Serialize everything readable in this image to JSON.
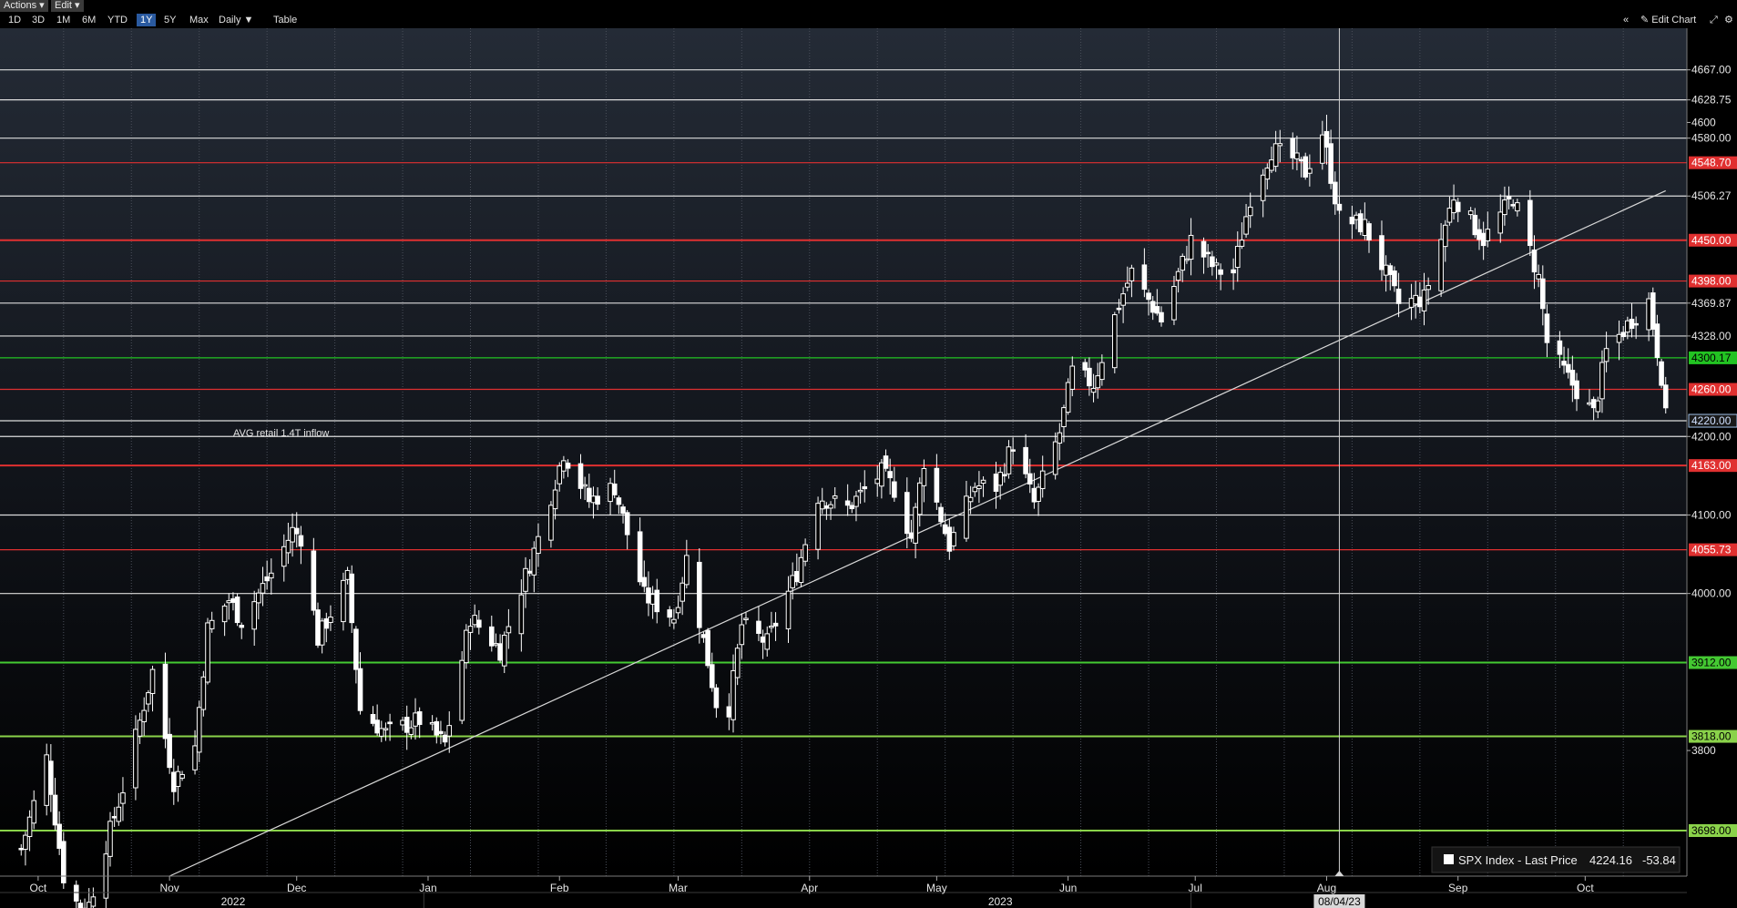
{
  "menu": {
    "actions": "Actions",
    "edit": "Edit"
  },
  "toolbar": {
    "ranges": [
      "1D",
      "3D",
      "1M",
      "6M",
      "YTD",
      "1Y",
      "5Y",
      "Max"
    ],
    "active_range": "1Y",
    "frequency": "Daily",
    "table": "Table",
    "collapse": "«",
    "edit_chart": "Edit Chart"
  },
  "chart_data": {
    "type": "candlestick",
    "ylim": [
      3640,
      4720
    ],
    "grid": true,
    "annotation": "AVG retail 1.4T inflow",
    "crosshair_label": "08/04/23",
    "legend": {
      "label": "SPX Index - Last Price",
      "last": "4224.16",
      "change": "-53.84",
      "position": "bottom-right"
    },
    "axis_labels": [
      {
        "v": 4667,
        "t": "4667.00"
      },
      {
        "v": 4628.75,
        "t": "4628.75"
      },
      {
        "v": 4600,
        "t": "4600"
      },
      {
        "v": 4580,
        "t": "4580.00"
      },
      {
        "v": 4506.27,
        "t": "4506.27"
      },
      {
        "v": 4369.87,
        "t": "4369.87"
      },
      {
        "v": 4328,
        "t": "4328.00"
      },
      {
        "v": 4200,
        "t": "4200.00"
      },
      {
        "v": 4100,
        "t": "4100.00"
      },
      {
        "v": 4000,
        "t": "4000.00"
      },
      {
        "v": 3800,
        "t": "3800"
      }
    ],
    "levels": [
      {
        "v": 4667,
        "t": "4667.00",
        "c": "#dcdcdc"
      },
      {
        "v": 4628.75,
        "t": "4628.75",
        "c": "#dcdcdc"
      },
      {
        "v": 4580,
        "t": "4580.00",
        "c": "#dcdcdc"
      },
      {
        "v": 4548.7,
        "t": "4548.70",
        "c": "#e03030"
      },
      {
        "v": 4506.27,
        "t": "4506.27",
        "c": "#dcdcdc"
      },
      {
        "v": 4450,
        "t": "4450.00",
        "c": "#e03030"
      },
      {
        "v": 4398,
        "t": "4398.00",
        "c": "#e03030"
      },
      {
        "v": 4369.87,
        "t": "4369.87",
        "c": "#dcdcdc"
      },
      {
        "v": 4328,
        "t": "4328.00",
        "c": "#dcdcdc"
      },
      {
        "v": 4300.17,
        "t": "4300.17",
        "c": "#22c322"
      },
      {
        "v": 4260,
        "t": "4260.00",
        "c": "#e03030"
      },
      {
        "v": 4220,
        "t": "4220.00",
        "c": "#9fbfe8"
      },
      {
        "v": 4200,
        "t": "4200.00",
        "c": "#dcdcdc"
      },
      {
        "v": 4163,
        "t": "4163.00",
        "c": "#e03030"
      },
      {
        "v": 4100,
        "t": "4100.00",
        "c": "#dcdcdc"
      },
      {
        "v": 4055.73,
        "t": "4055.73",
        "c": "#e03030"
      },
      {
        "v": 4000,
        "t": "4000.00",
        "c": "#dcdcdc"
      },
      {
        "v": 3912,
        "t": "3912.00",
        "c": "#44c932"
      },
      {
        "v": 3818,
        "t": "3818.00",
        "c": "#8ad24a"
      },
      {
        "v": 3698,
        "t": "3698.00",
        "c": "#8ad24a"
      }
    ],
    "months": [
      {
        "label": "Oct",
        "date": "2022-10-01"
      },
      {
        "label": "Nov",
        "date": "2022-11-01"
      },
      {
        "label": "Dec",
        "date": "2022-12-01"
      },
      {
        "label": "Jan",
        "date": "2023-01-01"
      },
      {
        "label": "Feb",
        "date": "2023-02-01"
      },
      {
        "label": "Mar",
        "date": "2023-03-01"
      },
      {
        "label": "Apr",
        "date": "2023-04-01"
      },
      {
        "label": "May",
        "date": "2023-05-01"
      },
      {
        "label": "Jun",
        "date": "2023-06-01"
      },
      {
        "label": "Jul",
        "date": "2023-07-01"
      },
      {
        "label": "Aug",
        "date": "2023-08-01"
      },
      {
        "label": "Sep",
        "date": "2023-09-01"
      },
      {
        "label": "Oct",
        "date": "2023-10-01"
      }
    ],
    "years": [
      {
        "label": "2022",
        "date": "2022-11-16"
      },
      {
        "label": "2023",
        "date": "2023-05-16"
      }
    ],
    "crosshair_date": "2023-08-04",
    "trendline": [
      {
        "date": "2022-11-01",
        "value": 3640
      },
      {
        "date": "2023-10-20",
        "value": 4513
      }
    ],
    "anchors": [
      {
        "d": "2022-09-26",
        "v": 3655
      },
      {
        "d": "2022-10-03",
        "v": 3790
      },
      {
        "d": "2022-10-07",
        "v": 3640
      },
      {
        "d": "2022-10-12",
        "v": 3585
      },
      {
        "d": "2022-10-17",
        "v": 3680
      },
      {
        "d": "2022-10-21",
        "v": 3752
      },
      {
        "d": "2022-10-28",
        "v": 3901
      },
      {
        "d": "2022-11-02",
        "v": 3760
      },
      {
        "d": "2022-11-07",
        "v": 3805
      },
      {
        "d": "2022-11-10",
        "v": 3955
      },
      {
        "d": "2022-11-15",
        "v": 3992
      },
      {
        "d": "2022-11-18",
        "v": 3965
      },
      {
        "d": "2022-11-25",
        "v": 4026
      },
      {
        "d": "2022-11-30",
        "v": 4080
      },
      {
        "d": "2022-12-02",
        "v": 4072
      },
      {
        "d": "2022-12-06",
        "v": 3942
      },
      {
        "d": "2022-12-13",
        "v": 4019
      },
      {
        "d": "2022-12-16",
        "v": 3852
      },
      {
        "d": "2022-12-22",
        "v": 3822
      },
      {
        "d": "2022-12-30",
        "v": 3839
      },
      {
        "d": "2023-01-05",
        "v": 3808
      },
      {
        "d": "2023-01-11",
        "v": 3970
      },
      {
        "d": "2023-01-18",
        "v": 3928
      },
      {
        "d": "2023-01-27",
        "v": 4070
      },
      {
        "d": "2023-02-02",
        "v": 4180
      },
      {
        "d": "2023-02-08",
        "v": 4118
      },
      {
        "d": "2023-02-14",
        "v": 4136
      },
      {
        "d": "2023-02-21",
        "v": 3997
      },
      {
        "d": "2023-02-28",
        "v": 3970
      },
      {
        "d": "2023-03-03",
        "v": 4045
      },
      {
        "d": "2023-03-10",
        "v": 3861
      },
      {
        "d": "2023-03-13",
        "v": 3855
      },
      {
        "d": "2023-03-16",
        "v": 3960
      },
      {
        "d": "2023-03-22",
        "v": 3937
      },
      {
        "d": "2023-03-29",
        "v": 4027
      },
      {
        "d": "2023-04-03",
        "v": 4124
      },
      {
        "d": "2023-04-10",
        "v": 4109
      },
      {
        "d": "2023-04-18",
        "v": 4154
      },
      {
        "d": "2023-04-21",
        "v": 4133
      },
      {
        "d": "2023-04-25",
        "v": 4071
      },
      {
        "d": "2023-04-28",
        "v": 4169
      },
      {
        "d": "2023-05-04",
        "v": 4061
      },
      {
        "d": "2023-05-10",
        "v": 4137
      },
      {
        "d": "2023-05-15",
        "v": 4136
      },
      {
        "d": "2023-05-19",
        "v": 4191
      },
      {
        "d": "2023-05-24",
        "v": 4115
      },
      {
        "d": "2023-05-30",
        "v": 4205
      },
      {
        "d": "2023-06-02",
        "v": 4282
      },
      {
        "d": "2023-06-07",
        "v": 4267
      },
      {
        "d": "2023-06-13",
        "v": 4369
      },
      {
        "d": "2023-06-16",
        "v": 4409
      },
      {
        "d": "2023-06-23",
        "v": 4348
      },
      {
        "d": "2023-06-30",
        "v": 4450
      },
      {
        "d": "2023-07-06",
        "v": 4411
      },
      {
        "d": "2023-07-10",
        "v": 4409
      },
      {
        "d": "2023-07-14",
        "v": 4505
      },
      {
        "d": "2023-07-19",
        "v": 4565
      },
      {
        "d": "2023-07-24",
        "v": 4554
      },
      {
        "d": "2023-07-27",
        "v": 4537
      },
      {
        "d": "2023-07-31",
        "v": 4588
      },
      {
        "d": "2023-08-04",
        "v": 4478
      },
      {
        "d": "2023-08-10",
        "v": 4468
      },
      {
        "d": "2023-08-18",
        "v": 4369
      },
      {
        "d": "2023-08-24",
        "v": 4376
      },
      {
        "d": "2023-08-31",
        "v": 4507
      },
      {
        "d": "2023-09-07",
        "v": 4451
      },
      {
        "d": "2023-09-14",
        "v": 4505
      },
      {
        "d": "2023-09-20",
        "v": 4402
      },
      {
        "d": "2023-09-22",
        "v": 4320
      },
      {
        "d": "2023-09-27",
        "v": 4274
      },
      {
        "d": "2023-10-03",
        "v": 4229
      },
      {
        "d": "2023-10-06",
        "v": 4308
      },
      {
        "d": "2023-10-12",
        "v": 4349
      },
      {
        "d": "2023-10-16",
        "v": 4373
      },
      {
        "d": "2023-10-19",
        "v": 4278
      },
      {
        "d": "2023-10-20",
        "v": 4224
      }
    ]
  }
}
